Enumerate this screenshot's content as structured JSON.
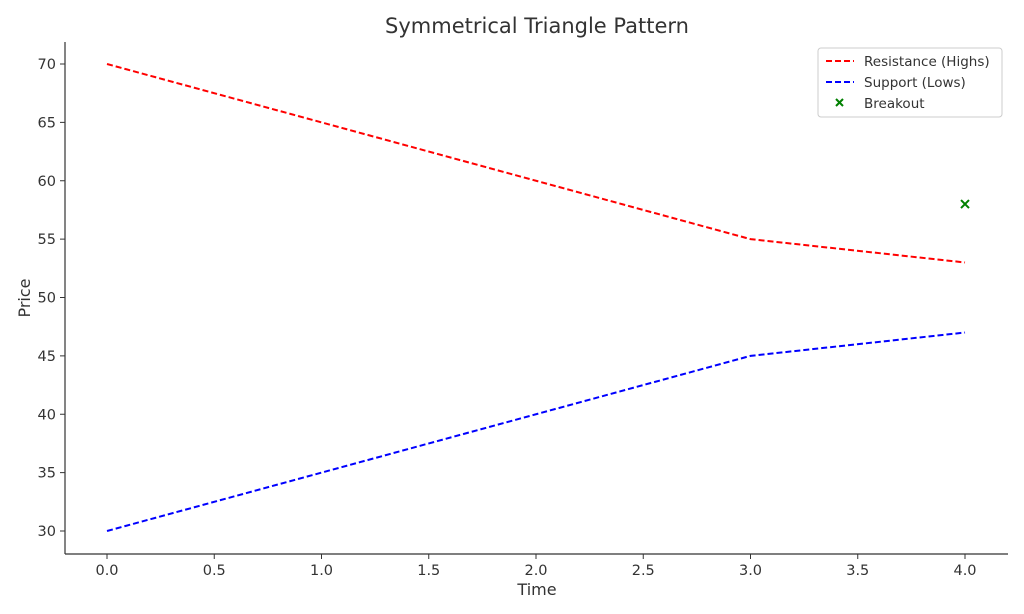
{
  "chart_data": {
    "type": "line",
    "title": "Symmetrical Triangle Pattern",
    "xlabel": "Time",
    "ylabel": "Price",
    "xlim": [
      -0.2,
      4.2
    ],
    "ylim": [
      28,
      72
    ],
    "x_ticks": [
      "0.0",
      "0.5",
      "1.0",
      "1.5",
      "2.0",
      "2.5",
      "3.0",
      "3.5",
      "4.0"
    ],
    "y_ticks": [
      "30",
      "35",
      "40",
      "45",
      "50",
      "55",
      "60",
      "65",
      "70"
    ],
    "grid": false,
    "legend_position": "upper right",
    "series": [
      {
        "name": "Resistance (Highs)",
        "style": "dashed",
        "color": "#ff0000",
        "x": [
          0,
          3,
          4
        ],
        "values": [
          70,
          55,
          53
        ]
      },
      {
        "name": "Support (Lows)",
        "style": "dashed",
        "color": "#0000ff",
        "x": [
          0,
          3,
          4
        ],
        "values": [
          30,
          45,
          47
        ]
      },
      {
        "name": "Breakout",
        "style": "marker-x",
        "color": "#008000",
        "x": [
          4
        ],
        "values": [
          58
        ]
      }
    ]
  },
  "legend": {
    "items": [
      {
        "label": "Resistance (Highs)"
      },
      {
        "label": "Support (Lows)"
      },
      {
        "label": "Breakout"
      }
    ]
  }
}
